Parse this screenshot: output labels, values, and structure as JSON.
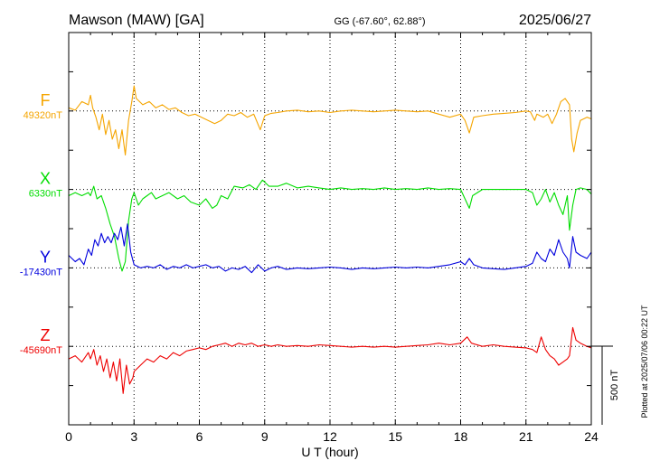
{
  "header": {
    "station": "Mawson (MAW)  [GA]",
    "coords": "GG (-67.60°,  62.88°)",
    "date": "2025/06/27"
  },
  "footer": {
    "plotted": "Plotted at 2025/07/06 00:22 UT"
  },
  "chart_data": {
    "type": "line",
    "xlabel": "U T (hour)",
    "xlim": [
      0,
      24
    ],
    "x_ticks": [
      "0",
      "3",
      "6",
      "9",
      "12",
      "15",
      "18",
      "21",
      "24"
    ],
    "scale_bar": {
      "label": "500 nT",
      "value_nT": 500
    },
    "nT_per_division": 250,
    "series": [
      {
        "name": "F",
        "baseline_label": "49320nT",
        "baseline_nT": 49320,
        "color": "#f5a500",
        "points": [
          [
            0,
            20
          ],
          [
            0.3,
            5
          ],
          [
            0.6,
            60
          ],
          [
            0.9,
            40
          ],
          [
            1.0,
            100
          ],
          [
            1.1,
            20
          ],
          [
            1.25,
            -40
          ],
          [
            1.4,
            -120
          ],
          [
            1.55,
            -20
          ],
          [
            1.7,
            -150
          ],
          [
            1.85,
            -60
          ],
          [
            2.0,
            -180
          ],
          [
            2.15,
            -120
          ],
          [
            2.3,
            -240
          ],
          [
            2.45,
            -120
          ],
          [
            2.6,
            -280
          ],
          [
            2.75,
            -60
          ],
          [
            2.9,
            60
          ],
          [
            3.0,
            160
          ],
          [
            3.1,
            80
          ],
          [
            3.4,
            40
          ],
          [
            3.7,
            60
          ],
          [
            4.0,
            20
          ],
          [
            4.3,
            40
          ],
          [
            4.6,
            10
          ],
          [
            4.9,
            20
          ],
          [
            5.2,
            -10
          ],
          [
            5.5,
            -30
          ],
          [
            5.8,
            -20
          ],
          [
            6.1,
            -40
          ],
          [
            6.4,
            -60
          ],
          [
            6.7,
            -80
          ],
          [
            7.0,
            -60
          ],
          [
            7.3,
            -20
          ],
          [
            7.6,
            -30
          ],
          [
            7.9,
            -10
          ],
          [
            8.2,
            -40
          ],
          [
            8.5,
            -20
          ],
          [
            8.8,
            -120
          ],
          [
            9.0,
            -30
          ],
          [
            9.3,
            -15
          ],
          [
            9.6,
            -10
          ],
          [
            10.0,
            0
          ],
          [
            10.5,
            5
          ],
          [
            11.0,
            -5
          ],
          [
            11.5,
            0
          ],
          [
            12.0,
            -10
          ],
          [
            12.5,
            0
          ],
          [
            13.0,
            5
          ],
          [
            13.5,
            0
          ],
          [
            14.0,
            -5
          ],
          [
            14.5,
            0
          ],
          [
            15.0,
            5
          ],
          [
            15.5,
            0
          ],
          [
            16.0,
            -5
          ],
          [
            16.5,
            0
          ],
          [
            17.0,
            -20
          ],
          [
            17.5,
            -40
          ],
          [
            18.0,
            -20
          ],
          [
            18.2,
            -60
          ],
          [
            18.4,
            -140
          ],
          [
            18.6,
            -40
          ],
          [
            19.0,
            -30
          ],
          [
            19.5,
            -20
          ],
          [
            20.0,
            -15
          ],
          [
            20.5,
            -10
          ],
          [
            21.0,
            0
          ],
          [
            21.2,
            -5
          ],
          [
            21.4,
            -60
          ],
          [
            21.5,
            -20
          ],
          [
            21.8,
            -40
          ],
          [
            22.0,
            -20
          ],
          [
            22.2,
            -80
          ],
          [
            22.4,
            -20
          ],
          [
            22.6,
            60
          ],
          [
            22.8,
            80
          ],
          [
            23.0,
            40
          ],
          [
            23.1,
            -180
          ],
          [
            23.2,
            -260
          ],
          [
            23.35,
            -140
          ],
          [
            23.5,
            -60
          ],
          [
            23.8,
            -40
          ],
          [
            24.0,
            -50
          ]
        ]
      },
      {
        "name": "X",
        "baseline_label": "6330nT",
        "baseline_nT": 6330,
        "color": "#00dd00",
        "points": [
          [
            0,
            -40
          ],
          [
            0.3,
            -20
          ],
          [
            0.6,
            -40
          ],
          [
            0.9,
            -20
          ],
          [
            1.0,
            -40
          ],
          [
            1.15,
            20
          ],
          [
            1.3,
            -60
          ],
          [
            1.5,
            -40
          ],
          [
            1.7,
            -120
          ],
          [
            1.9,
            -220
          ],
          [
            2.1,
            -300
          ],
          [
            2.3,
            -440
          ],
          [
            2.45,
            -520
          ],
          [
            2.6,
            -460
          ],
          [
            2.75,
            -200
          ],
          [
            2.9,
            -60
          ],
          [
            3.0,
            -20
          ],
          [
            3.2,
            -100
          ],
          [
            3.4,
            -60
          ],
          [
            3.6,
            -40
          ],
          [
            3.8,
            -20
          ],
          [
            4.0,
            -60
          ],
          [
            4.3,
            -40
          ],
          [
            4.6,
            -20
          ],
          [
            5.0,
            -60
          ],
          [
            5.3,
            -40
          ],
          [
            5.6,
            -80
          ],
          [
            6.0,
            -100
          ],
          [
            6.3,
            -60
          ],
          [
            6.6,
            -120
          ],
          [
            6.8,
            -100
          ],
          [
            7.0,
            -40
          ],
          [
            7.3,
            -60
          ],
          [
            7.6,
            20
          ],
          [
            8.0,
            10
          ],
          [
            8.3,
            30
          ],
          [
            8.6,
            0
          ],
          [
            8.9,
            60
          ],
          [
            9.2,
            20
          ],
          [
            9.6,
            20
          ],
          [
            10.0,
            40
          ],
          [
            10.5,
            10
          ],
          [
            11.0,
            20
          ],
          [
            11.5,
            10
          ],
          [
            12.0,
            0
          ],
          [
            12.5,
            10
          ],
          [
            13.0,
            0
          ],
          [
            13.5,
            5
          ],
          [
            14.0,
            0
          ],
          [
            14.5,
            10
          ],
          [
            15.0,
            0
          ],
          [
            15.5,
            5
          ],
          [
            16.0,
            0
          ],
          [
            16.5,
            10
          ],
          [
            17.0,
            0
          ],
          [
            17.5,
            5
          ],
          [
            18.0,
            0
          ],
          [
            18.2,
            -60
          ],
          [
            18.4,
            -120
          ],
          [
            18.55,
            -40
          ],
          [
            19.0,
            0
          ],
          [
            19.5,
            0
          ],
          [
            20.0,
            0
          ],
          [
            20.5,
            0
          ],
          [
            21.0,
            0
          ],
          [
            21.3,
            -20
          ],
          [
            21.5,
            -100
          ],
          [
            21.7,
            -60
          ],
          [
            21.9,
            0
          ],
          [
            22.1,
            -80
          ],
          [
            22.3,
            -20
          ],
          [
            22.5,
            -100
          ],
          [
            22.7,
            -160
          ],
          [
            22.9,
            -40
          ],
          [
            23.0,
            -260
          ],
          [
            23.15,
            -100
          ],
          [
            23.3,
            0
          ],
          [
            23.5,
            10
          ],
          [
            23.8,
            0
          ],
          [
            24.0,
            -30
          ]
        ]
      },
      {
        "name": "Y",
        "baseline_label": "-17430nT",
        "baseline_nT": -17430,
        "color": "#0000dd",
        "points": [
          [
            0,
            80
          ],
          [
            0.3,
            40
          ],
          [
            0.5,
            60
          ],
          [
            0.7,
            20
          ],
          [
            0.9,
            120
          ],
          [
            1.05,
            80
          ],
          [
            1.2,
            180
          ],
          [
            1.35,
            140
          ],
          [
            1.5,
            220
          ],
          [
            1.65,
            160
          ],
          [
            1.8,
            200
          ],
          [
            1.95,
            160
          ],
          [
            2.1,
            220
          ],
          [
            2.25,
            180
          ],
          [
            2.4,
            260
          ],
          [
            2.55,
            140
          ],
          [
            2.7,
            280
          ],
          [
            2.85,
            100
          ],
          [
            3.0,
            20
          ],
          [
            3.3,
            0
          ],
          [
            3.6,
            10
          ],
          [
            3.9,
            0
          ],
          [
            4.2,
            20
          ],
          [
            4.5,
            -10
          ],
          [
            4.8,
            10
          ],
          [
            5.1,
            0
          ],
          [
            5.4,
            20
          ],
          [
            5.7,
            0
          ],
          [
            6.0,
            10
          ],
          [
            6.3,
            20
          ],
          [
            6.6,
            0
          ],
          [
            6.9,
            10
          ],
          [
            7.2,
            -20
          ],
          [
            7.5,
            0
          ],
          [
            7.8,
            -10
          ],
          [
            8.1,
            10
          ],
          [
            8.4,
            -30
          ],
          [
            8.7,
            20
          ],
          [
            9.0,
            -20
          ],
          [
            9.3,
            0
          ],
          [
            9.6,
            10
          ],
          [
            10.0,
            -10
          ],
          [
            10.5,
            0
          ],
          [
            11.0,
            -5
          ],
          [
            11.5,
            0
          ],
          [
            12.0,
            5
          ],
          [
            12.5,
            0
          ],
          [
            13.0,
            -10
          ],
          [
            13.5,
            0
          ],
          [
            14.0,
            -5
          ],
          [
            14.5,
            0
          ],
          [
            15.0,
            5
          ],
          [
            15.5,
            0
          ],
          [
            16.0,
            5
          ],
          [
            16.5,
            0
          ],
          [
            17.0,
            10
          ],
          [
            17.5,
            20
          ],
          [
            18.0,
            40
          ],
          [
            18.2,
            20
          ],
          [
            18.4,
            60
          ],
          [
            18.6,
            20
          ],
          [
            19.0,
            0
          ],
          [
            19.5,
            -5
          ],
          [
            20.0,
            -10
          ],
          [
            20.5,
            0
          ],
          [
            21.0,
            10
          ],
          [
            21.3,
            30
          ],
          [
            21.5,
            100
          ],
          [
            21.7,
            60
          ],
          [
            21.9,
            40
          ],
          [
            22.1,
            120
          ],
          [
            22.3,
            80
          ],
          [
            22.5,
            180
          ],
          [
            22.7,
            100
          ],
          [
            22.9,
            60
          ],
          [
            23.0,
            0
          ],
          [
            23.15,
            200
          ],
          [
            23.3,
            100
          ],
          [
            23.5,
            80
          ],
          [
            23.8,
            60
          ],
          [
            24.0,
            100
          ]
        ]
      },
      {
        "name": "Z",
        "baseline_label": "-45690nT",
        "baseline_nT": -45690,
        "color": "#ee0000",
        "points": [
          [
            0,
            -80
          ],
          [
            0.3,
            -60
          ],
          [
            0.6,
            -100
          ],
          [
            0.9,
            -40
          ],
          [
            1.0,
            -80
          ],
          [
            1.15,
            -20
          ],
          [
            1.3,
            -120
          ],
          [
            1.45,
            -60
          ],
          [
            1.6,
            -160
          ],
          [
            1.75,
            -80
          ],
          [
            1.9,
            -200
          ],
          [
            2.05,
            -100
          ],
          [
            2.2,
            -220
          ],
          [
            2.35,
            -80
          ],
          [
            2.5,
            -300
          ],
          [
            2.65,
            -120
          ],
          [
            2.8,
            -240
          ],
          [
            2.95,
            -200
          ],
          [
            3.0,
            -160
          ],
          [
            3.3,
            -120
          ],
          [
            3.6,
            -80
          ],
          [
            3.9,
            -100
          ],
          [
            4.2,
            -60
          ],
          [
            4.5,
            -80
          ],
          [
            4.8,
            -40
          ],
          [
            5.1,
            -60
          ],
          [
            5.4,
            -30
          ],
          [
            5.7,
            -20
          ],
          [
            6.0,
            -10
          ],
          [
            6.3,
            -20
          ],
          [
            6.6,
            0
          ],
          [
            6.9,
            10
          ],
          [
            7.2,
            20
          ],
          [
            7.5,
            0
          ],
          [
            7.8,
            20
          ],
          [
            8.1,
            10
          ],
          [
            8.4,
            20
          ],
          [
            8.7,
            0
          ],
          [
            9.0,
            10
          ],
          [
            9.3,
            0
          ],
          [
            9.6,
            10
          ],
          [
            10.0,
            0
          ],
          [
            10.5,
            5
          ],
          [
            11.0,
            0
          ],
          [
            11.5,
            10
          ],
          [
            12.0,
            5
          ],
          [
            12.5,
            0
          ],
          [
            13.0,
            -5
          ],
          [
            13.5,
            0
          ],
          [
            14.0,
            -5
          ],
          [
            14.5,
            0
          ],
          [
            15.0,
            -5
          ],
          [
            15.5,
            0
          ],
          [
            16.0,
            5
          ],
          [
            16.5,
            10
          ],
          [
            17.0,
            20
          ],
          [
            17.5,
            10
          ],
          [
            18.0,
            20
          ],
          [
            18.3,
            60
          ],
          [
            18.5,
            20
          ],
          [
            19.0,
            0
          ],
          [
            19.5,
            10
          ],
          [
            20.0,
            0
          ],
          [
            20.5,
            -5
          ],
          [
            21.0,
            -10
          ],
          [
            21.3,
            -20
          ],
          [
            21.5,
            -40
          ],
          [
            21.7,
            60
          ],
          [
            21.9,
            -20
          ],
          [
            22.1,
            -60
          ],
          [
            22.3,
            -80
          ],
          [
            22.5,
            -120
          ],
          [
            22.7,
            -100
          ],
          [
            22.9,
            -80
          ],
          [
            23.0,
            -60
          ],
          [
            23.15,
            120
          ],
          [
            23.3,
            40
          ],
          [
            23.5,
            20
          ],
          [
            23.8,
            0
          ],
          [
            24.0,
            -10
          ]
        ]
      }
    ]
  }
}
